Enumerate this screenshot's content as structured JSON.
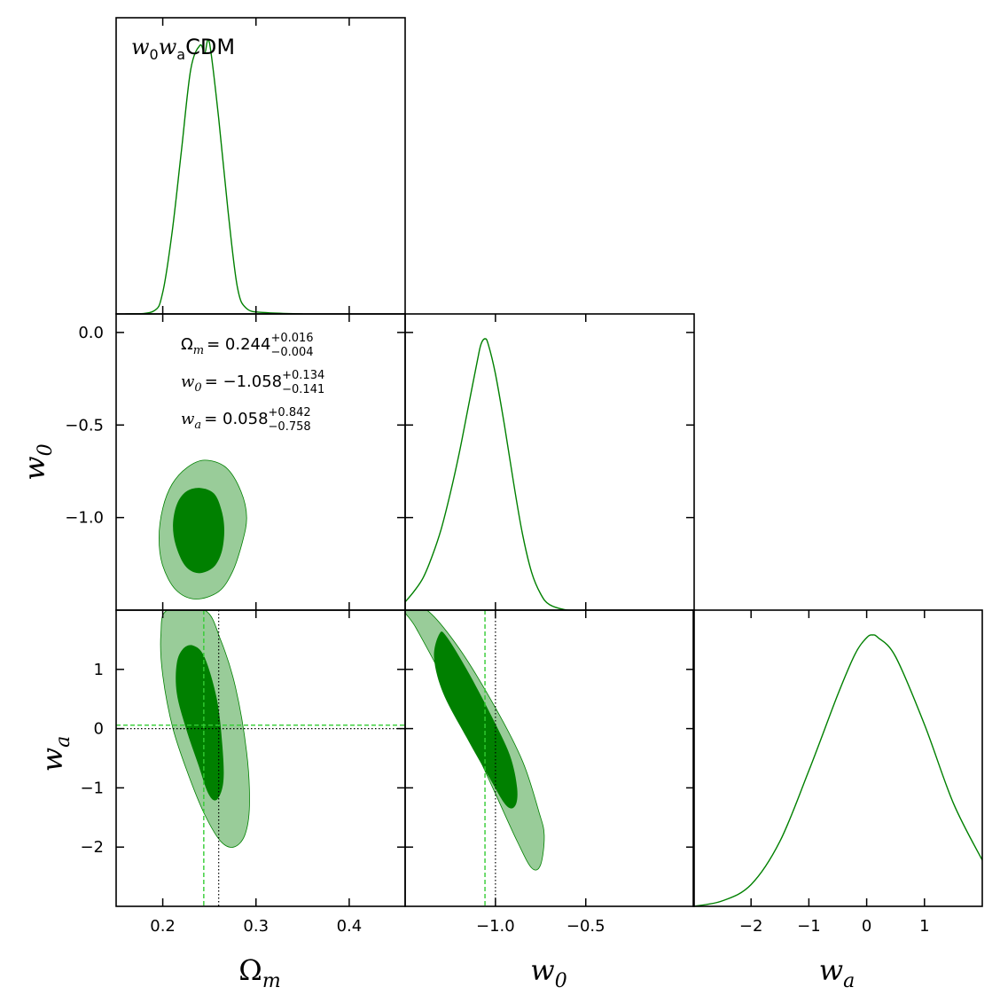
{
  "chart_data": {
    "type": "triangle-corner-plot",
    "title": "CDM",
    "model_label": {
      "w": "w",
      "sub0": "0",
      "sub_a": "a",
      "suffix": "CDM"
    },
    "colors": {
      "line": "#008000",
      "inner_fill": "#008000",
      "outer_fill": "#99cc99",
      "marker_dashed": "#33cc33",
      "fiducial_dotted": "#000000"
    },
    "parameters": [
      {
        "key": "Om",
        "label_sym": "Ω",
        "label_sub": "m",
        "range": [
          0.15,
          0.46
        ],
        "ticks": [
          0.2,
          0.3,
          0.4
        ],
        "tick_labels": [
          "0.2",
          "0.3",
          "0.4"
        ]
      },
      {
        "key": "w0",
        "label_sym": "w",
        "label_sub": "0",
        "range": [
          -1.5,
          0.1
        ],
        "ticks": [
          0.0,
          -0.5,
          -1.0
        ],
        "tick_labels": [
          "0.0",
          "−0.5",
          "−1.0"
        ],
        "x_ticks": [
          -1.0,
          -0.5
        ],
        "x_tick_labels": [
          "−1.0",
          "−0.5"
        ]
      },
      {
        "key": "wa",
        "label_sym": "w",
        "label_sub": "a",
        "range": [
          -3.0,
          2.0
        ],
        "ticks": [
          1,
          0,
          -1,
          -2
        ],
        "tick_labels": [
          "1",
          "0",
          "−1",
          "−2"
        ],
        "x_ticks": [
          -2,
          -1,
          0,
          1
        ],
        "x_tick_labels": [
          "−2",
          "−1",
          "0",
          "1"
        ]
      }
    ],
    "marginals": {
      "Om": {
        "x": [
          0.16,
          0.19,
          0.2,
          0.21,
          0.22,
          0.23,
          0.24,
          0.245,
          0.25,
          0.26,
          0.27,
          0.28,
          0.29,
          0.31,
          0.35
        ],
        "y": [
          0.0,
          0.01,
          0.08,
          0.3,
          0.6,
          0.9,
          0.99,
          0.96,
          1.0,
          0.72,
          0.38,
          0.1,
          0.02,
          0.005,
          0.0
        ]
      },
      "w0": {
        "x": [
          -1.5,
          -1.45,
          -1.4,
          -1.35,
          -1.3,
          -1.25,
          -1.2,
          -1.15,
          -1.1,
          -1.08,
          -1.058,
          -1.04,
          -1.0,
          -0.95,
          -0.9,
          -0.85,
          -0.8,
          -0.75,
          -0.7,
          -0.6,
          -0.5
        ],
        "y": [
          0.03,
          0.07,
          0.12,
          0.2,
          0.3,
          0.43,
          0.58,
          0.75,
          0.92,
          0.98,
          1.0,
          0.98,
          0.87,
          0.68,
          0.47,
          0.28,
          0.14,
          0.06,
          0.02,
          0.0,
          0.0
        ]
      },
      "wa": {
        "x": [
          -3.0,
          -2.5,
          -2.0,
          -1.5,
          -1.0,
          -0.5,
          -0.2,
          0.0,
          0.1,
          0.2,
          0.5,
          1.0,
          1.5,
          2.0
        ],
        "y": [
          0.0,
          0.02,
          0.08,
          0.24,
          0.5,
          0.78,
          0.93,
          0.99,
          1.0,
          0.99,
          0.92,
          0.67,
          0.38,
          0.17
        ]
      }
    },
    "contours_2d": [
      {
        "x": "Om",
        "y": "w0",
        "levels": [
          {
            "level": "95%",
            "points": [
              [
                0.245,
                -0.69
              ],
              [
                0.268,
                -0.73
              ],
              [
                0.284,
                -0.86
              ],
              [
                0.29,
                -1.0
              ],
              [
                0.285,
                -1.14
              ],
              [
                0.275,
                -1.29
              ],
              [
                0.26,
                -1.4
              ],
              [
                0.235,
                -1.44
              ],
              [
                0.214,
                -1.39
              ],
              [
                0.2,
                -1.26
              ],
              [
                0.196,
                -1.11
              ],
              [
                0.2,
                -0.95
              ],
              [
                0.21,
                -0.82
              ],
              [
                0.226,
                -0.73
              ]
            ]
          },
          {
            "level": "68%",
            "points": [
              [
                0.24,
                -0.84
              ],
              [
                0.255,
                -0.87
              ],
              [
                0.263,
                -0.96
              ],
              [
                0.266,
                -1.07
              ],
              [
                0.263,
                -1.19
              ],
              [
                0.254,
                -1.27
              ],
              [
                0.238,
                -1.3
              ],
              [
                0.224,
                -1.26
              ],
              [
                0.214,
                -1.15
              ],
              [
                0.211,
                -1.04
              ],
              [
                0.215,
                -0.93
              ],
              [
                0.225,
                -0.86
              ]
            ]
          }
        ]
      },
      {
        "x": "Om",
        "y": "wa",
        "levels": [
          {
            "level": "95%",
            "points": [
              [
                0.205,
                2.0
              ],
              [
                0.245,
                2.0
              ],
              [
                0.262,
                1.5
              ],
              [
                0.278,
                0.7
              ],
              [
                0.29,
                -0.4
              ],
              [
                0.293,
                -1.3
              ],
              [
                0.288,
                -1.8
              ],
              [
                0.276,
                -2.0
              ],
              [
                0.262,
                -1.9
              ],
              [
                0.245,
                -1.45
              ],
              [
                0.228,
                -0.8
              ],
              [
                0.211,
                0.0
              ],
              [
                0.2,
                0.9
              ],
              [
                0.198,
                1.6
              ]
            ]
          },
          {
            "level": "68%",
            "points": [
              [
                0.233,
                1.4
              ],
              [
                0.245,
                1.2
              ],
              [
                0.258,
                0.5
              ],
              [
                0.264,
                -0.3
              ],
              [
                0.265,
                -0.9
              ],
              [
                0.258,
                -1.2
              ],
              [
                0.249,
                -1.1
              ],
              [
                0.238,
                -0.6
              ],
              [
                0.225,
                0.0
              ],
              [
                0.215,
                0.6
              ],
              [
                0.215,
                1.1
              ],
              [
                0.222,
                1.35
              ]
            ]
          }
        ]
      },
      {
        "x": "w0",
        "y": "wa",
        "levels": [
          {
            "level": "95%",
            "points": [
              [
                -1.5,
                2.0
              ],
              [
                -1.38,
                2.0
              ],
              [
                -1.2,
                1.35
              ],
              [
                -1.0,
                0.35
              ],
              [
                -0.85,
                -0.55
              ],
              [
                -0.76,
                -1.4
              ],
              [
                -0.73,
                -1.8
              ],
              [
                -0.75,
                -2.3
              ],
              [
                -0.8,
                -2.35
              ],
              [
                -0.88,
                -1.9
              ],
              [
                -1.0,
                -1.1
              ],
              [
                -1.15,
                -0.1
              ],
              [
                -1.3,
                0.9
              ],
              [
                -1.44,
                1.7
              ]
            ]
          },
          {
            "level": "68%",
            "points": [
              [
                -1.31,
                1.6
              ],
              [
                -1.27,
                1.55
              ],
              [
                -1.15,
                0.95
              ],
              [
                -1.02,
                0.2
              ],
              [
                -0.92,
                -0.45
              ],
              [
                -0.88,
                -1.0
              ],
              [
                -0.89,
                -1.3
              ],
              [
                -0.94,
                -1.3
              ],
              [
                -1.03,
                -0.85
              ],
              [
                -1.16,
                -0.15
              ],
              [
                -1.29,
                0.6
              ],
              [
                -1.34,
                1.2
              ]
            ]
          }
        ]
      }
    ],
    "markers": {
      "dashed_green": {
        "Om": 0.244,
        "w0": -1.058,
        "wa": 0.058
      },
      "dotted_black": {
        "Om": 0.26,
        "w0": -1.0,
        "wa": 0.0
      }
    },
    "annotations": [
      {
        "sym": "Ω",
        "sub": "m",
        "value": "= 0.244",
        "sup": "+0.016",
        "inf": "−0.004"
      },
      {
        "sym": "w",
        "sub": "0",
        "value": "= −1.058",
        "sup": "+0.134",
        "inf": "−0.141"
      },
      {
        "sym": "w",
        "sub": "a",
        "value": "= 0.058",
        "sup": "+0.842",
        "inf": "−0.758"
      }
    ]
  }
}
